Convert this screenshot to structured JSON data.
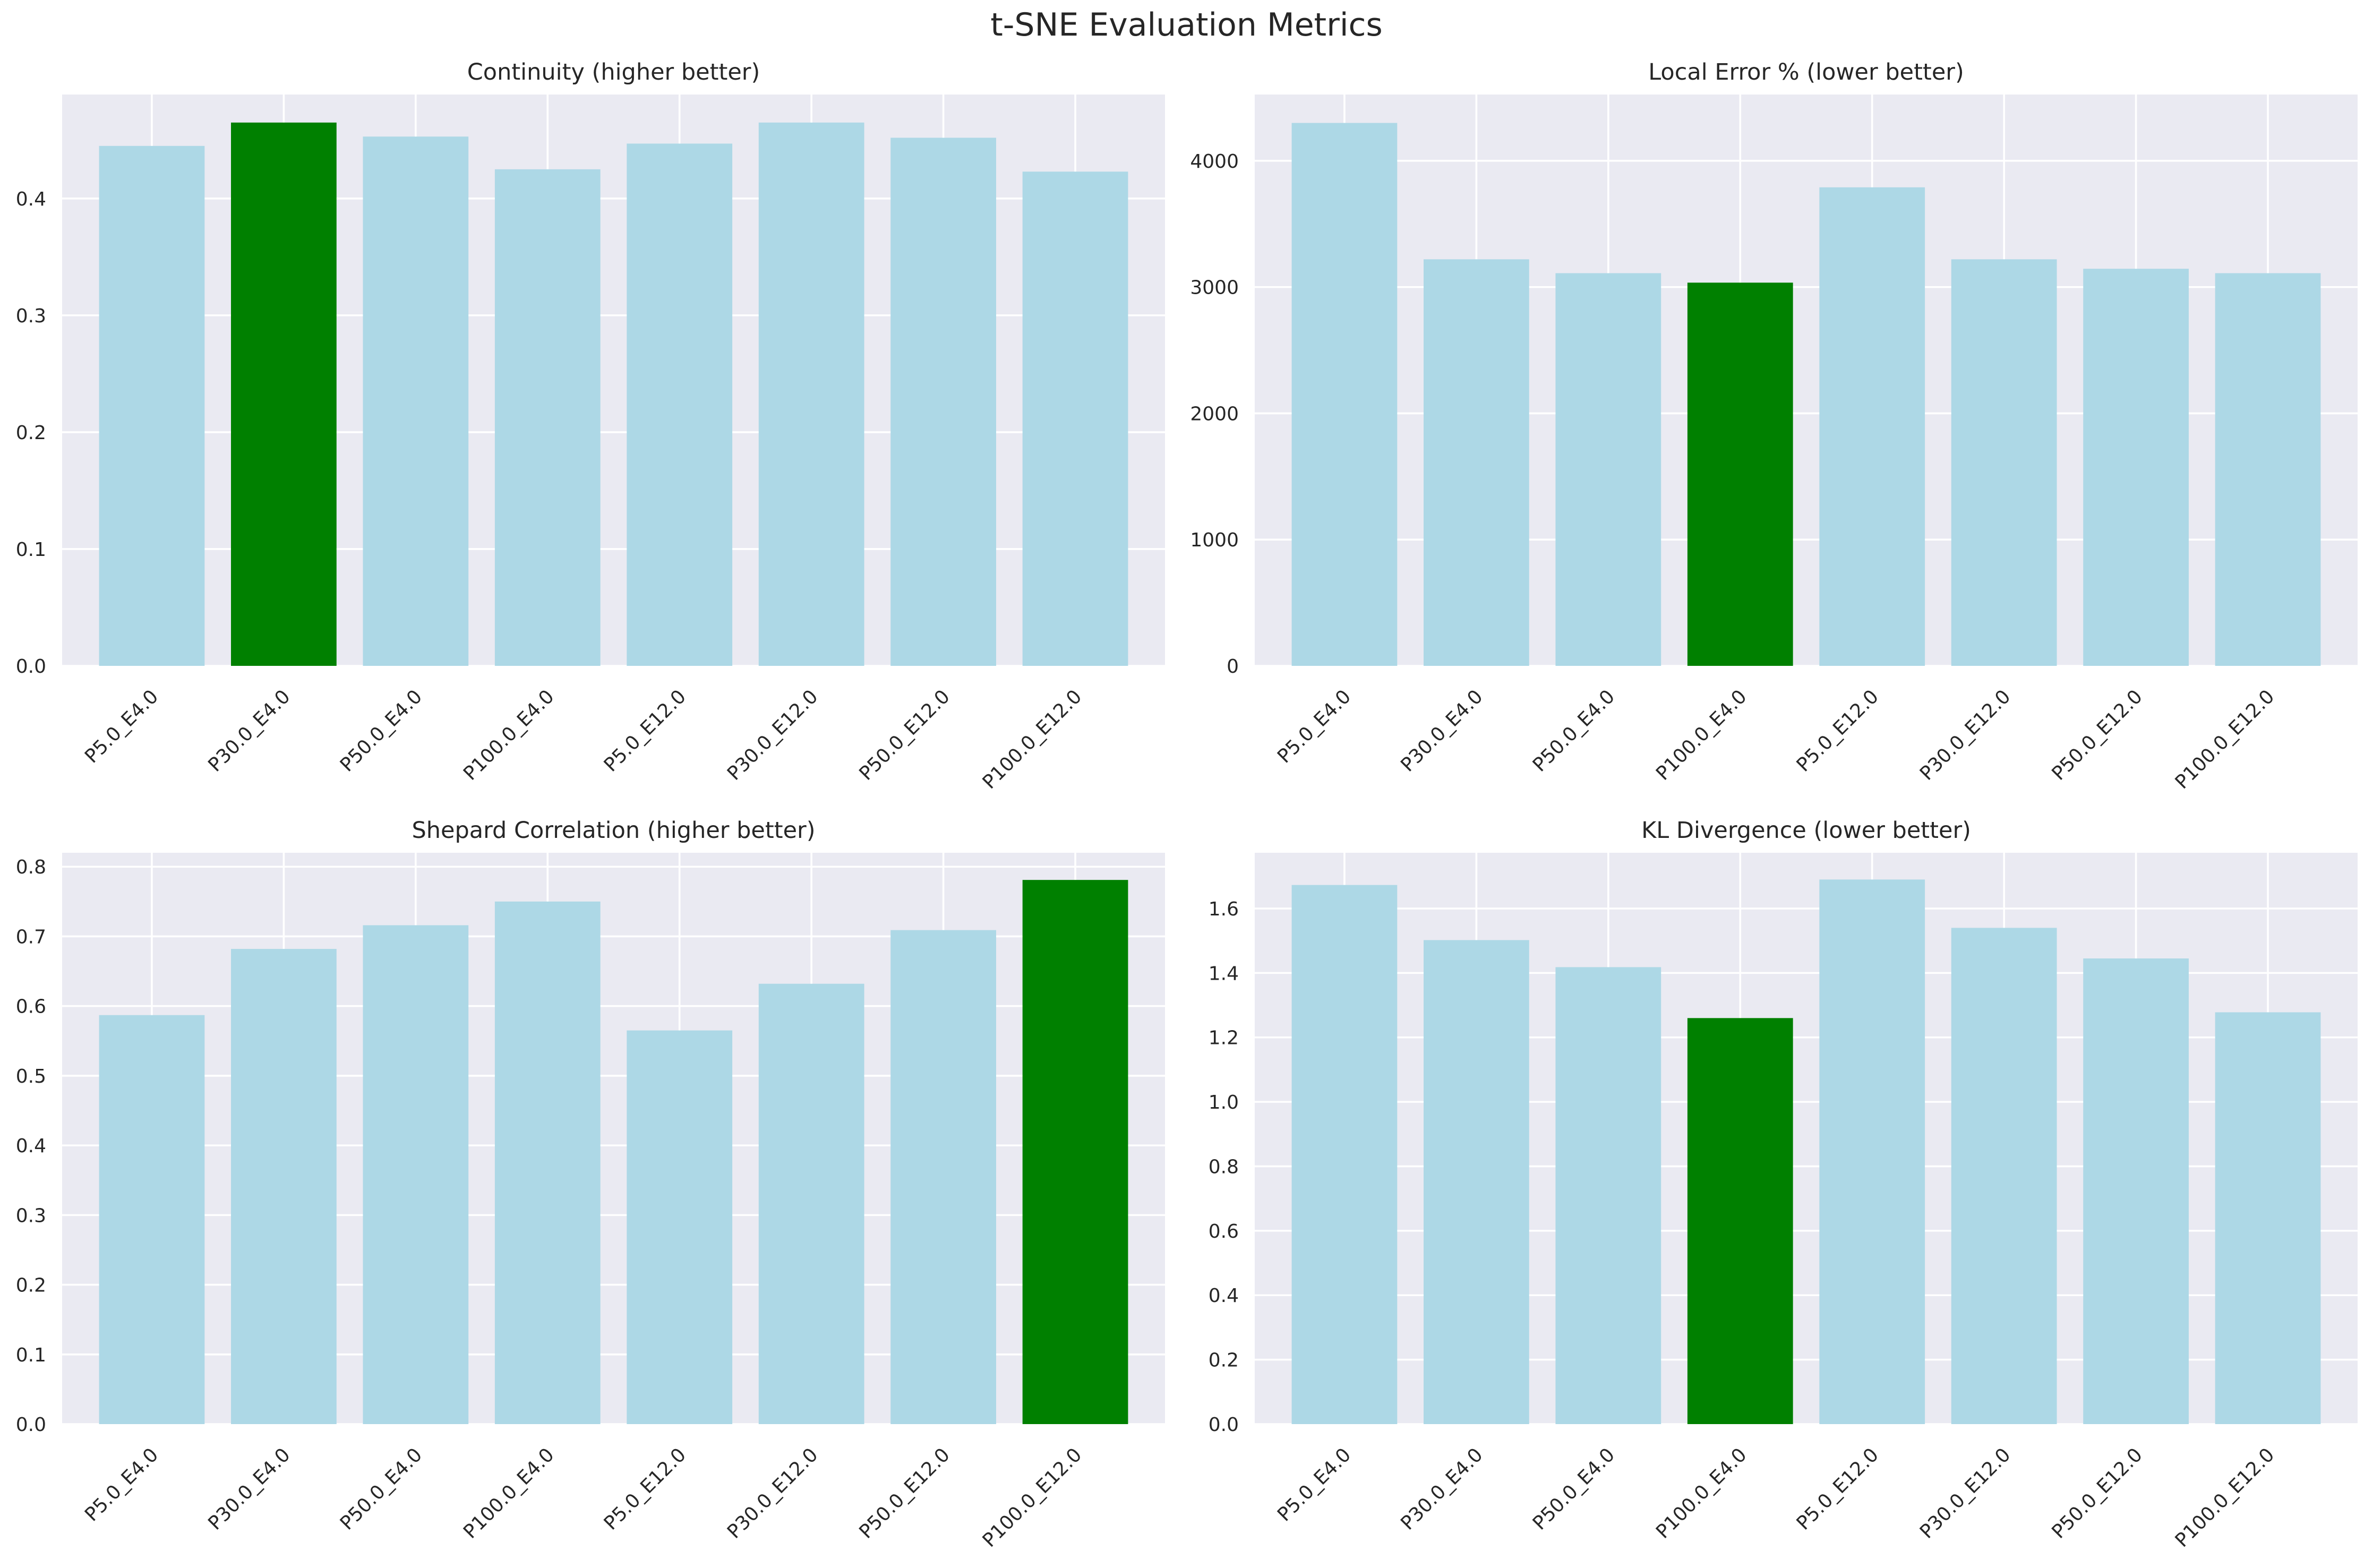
{
  "figure": {
    "title": "t-SNE Evaluation Metrics",
    "colors": {
      "background": "#ffffff",
      "axes_face": "#eaeaf2",
      "grid": "#ffffff",
      "bar_default": "#add8e6",
      "bar_best": "#008000",
      "text": "#262626"
    }
  },
  "chart_data": [
    {
      "type": "bar",
      "title": "Continuity (higher better)",
      "categories": [
        "P5.0_E4.0",
        "P30.0_E4.0",
        "P50.0_E4.0",
        "P100.0_E4.0",
        "P5.0_E12.0",
        "P30.0_E12.0",
        "P50.0_E12.0",
        "P100.0_E12.0"
      ],
      "values": [
        0.445,
        0.465,
        0.453,
        0.425,
        0.447,
        0.465,
        0.452,
        0.423
      ],
      "highlight_index": 1,
      "ylim": [
        0,
        0.489
      ],
      "yticks": [
        0.0,
        0.1,
        0.2,
        0.3,
        0.4
      ],
      "ytick_labels": [
        "0.0",
        "0.1",
        "0.2",
        "0.3",
        "0.4"
      ],
      "xlabel": "",
      "ylabel": "",
      "grid": true
    },
    {
      "type": "bar",
      "title": "Local Error % (lower better)",
      "categories": [
        "P5.0_E4.0",
        "P30.0_E4.0",
        "P50.0_E4.0",
        "P100.0_E4.0",
        "P5.0_E12.0",
        "P30.0_E12.0",
        "P50.0_E12.0",
        "P100.0_E12.0"
      ],
      "values": [
        4300,
        3220,
        3110,
        3035,
        3790,
        3220,
        3145,
        3110
      ],
      "highlight_index": 3,
      "ylim": [
        0,
        4525
      ],
      "yticks": [
        0,
        1000,
        2000,
        3000,
        4000
      ],
      "ytick_labels": [
        "0",
        "1000",
        "2000",
        "3000",
        "4000"
      ],
      "xlabel": "",
      "ylabel": "",
      "grid": true
    },
    {
      "type": "bar",
      "title": "Shepard Correlation (higher better)",
      "categories": [
        "P5.0_E4.0",
        "P30.0_E4.0",
        "P50.0_E4.0",
        "P100.0_E4.0",
        "P5.0_E12.0",
        "P30.0_E12.0",
        "P50.0_E12.0",
        "P100.0_E12.0"
      ],
      "values": [
        0.587,
        0.682,
        0.716,
        0.75,
        0.565,
        0.632,
        0.709,
        0.781
      ],
      "highlight_index": 7,
      "ylim": [
        0,
        0.82
      ],
      "yticks": [
        0.0,
        0.1,
        0.2,
        0.3,
        0.4,
        0.5,
        0.6,
        0.7,
        0.8
      ],
      "ytick_labels": [
        "0.0",
        "0.1",
        "0.2",
        "0.3",
        "0.4",
        "0.5",
        "0.6",
        "0.7",
        "0.8"
      ],
      "xlabel": "",
      "ylabel": "",
      "grid": true
    },
    {
      "type": "bar",
      "title": "KL Divergence (lower better)",
      "categories": [
        "P5.0_E4.0",
        "P30.0_E4.0",
        "P50.0_E4.0",
        "P100.0_E4.0",
        "P5.0_E12.0",
        "P30.0_E12.0",
        "P50.0_E12.0",
        "P100.0_E12.0"
      ],
      "values": [
        1.673,
        1.502,
        1.418,
        1.26,
        1.69,
        1.54,
        1.445,
        1.278
      ],
      "highlight_index": 3,
      "ylim": [
        0,
        1.773
      ],
      "yticks": [
        0.0,
        0.2,
        0.4,
        0.6,
        0.8,
        1.0,
        1.2,
        1.4,
        1.6
      ],
      "ytick_labels": [
        "0.0",
        "0.2",
        "0.4",
        "0.6",
        "0.8",
        "1.0",
        "1.2",
        "1.4",
        "1.6"
      ],
      "xlabel": "",
      "ylabel": "",
      "grid": true
    }
  ]
}
